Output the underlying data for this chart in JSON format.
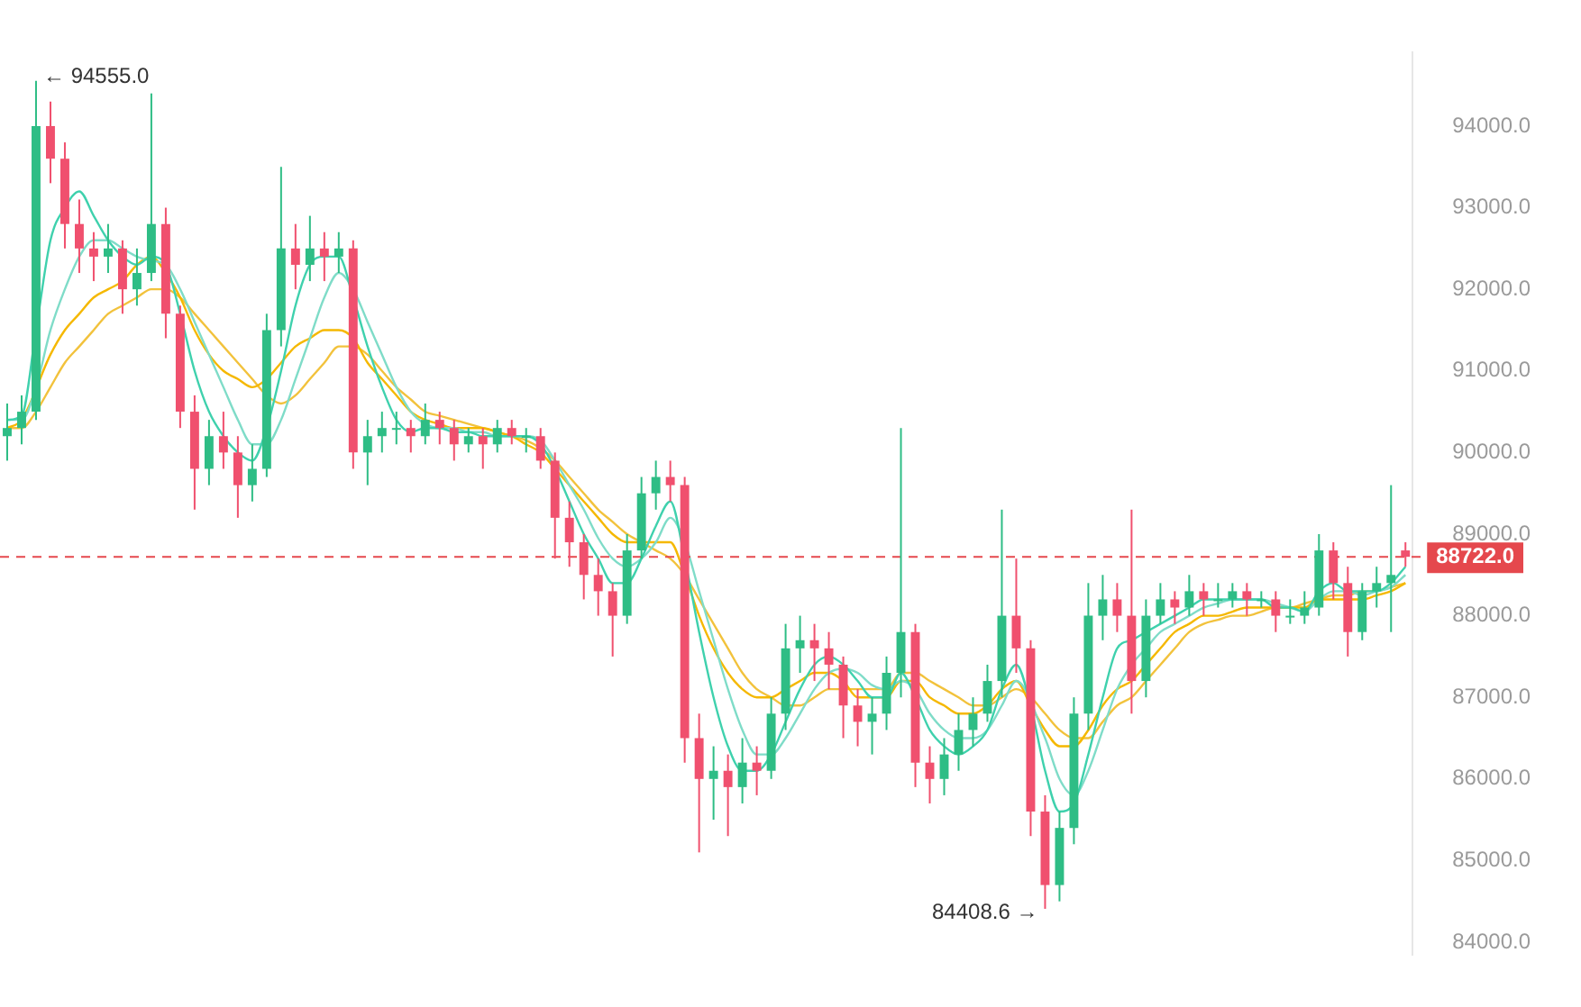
{
  "chart_data": {
    "type": "candlestick",
    "categories": [
      null,
      null,
      null,
      null,
      null,
      null,
      null,
      null,
      null,
      null,
      null,
      null,
      null,
      null,
      null,
      null,
      null,
      null,
      null,
      null,
      null,
      null,
      null,
      null,
      null,
      null,
      null,
      null,
      null,
      null,
      null,
      null,
      null,
      null,
      null,
      null,
      null,
      null,
      null,
      null,
      null,
      null,
      null,
      null,
      null,
      null,
      null,
      null,
      null,
      null,
      null,
      null,
      null,
      null,
      null,
      null,
      null,
      null,
      null,
      null,
      null,
      null,
      null,
      null,
      null,
      null,
      null,
      null,
      null,
      null,
      null,
      null,
      null,
      null,
      null,
      null,
      null,
      null,
      null,
      null,
      null,
      null,
      null,
      null,
      null,
      null,
      null,
      null,
      null,
      null,
      null,
      null,
      null,
      null,
      null,
      null,
      null,
      null
    ],
    "ohlc": [
      [
        90200,
        90600,
        89900,
        90300
      ],
      [
        90300,
        90700,
        90100,
        90500
      ],
      [
        90500,
        94555,
        90400,
        94000
      ],
      [
        94000,
        94300,
        93300,
        93600
      ],
      [
        93600,
        93800,
        92500,
        92800
      ],
      [
        92800,
        93100,
        92200,
        92500
      ],
      [
        92500,
        92700,
        92100,
        92400
      ],
      [
        92400,
        92800,
        92200,
        92500
      ],
      [
        92500,
        92600,
        91700,
        92000
      ],
      [
        92000,
        92500,
        91800,
        92200
      ],
      [
        92200,
        94400,
        92100,
        92800
      ],
      [
        92800,
        93000,
        91400,
        91700
      ],
      [
        91700,
        91800,
        90300,
        90500
      ],
      [
        90500,
        90700,
        89300,
        89800
      ],
      [
        89800,
        90400,
        89600,
        90200
      ],
      [
        90200,
        90500,
        89800,
        90000
      ],
      [
        90000,
        90200,
        89200,
        89600
      ],
      [
        89600,
        90100,
        89400,
        89800
      ],
      [
        89800,
        91700,
        89700,
        91500
      ],
      [
        91500,
        93500,
        91300,
        92500
      ],
      [
        92500,
        92800,
        92000,
        92300
      ],
      [
        92300,
        92900,
        92100,
        92500
      ],
      [
        92500,
        92700,
        92100,
        92400
      ],
      [
        92400,
        92700,
        92200,
        92500
      ],
      [
        92500,
        92600,
        89800,
        90000
      ],
      [
        90000,
        90400,
        89600,
        90200
      ],
      [
        90200,
        90500,
        90000,
        90300
      ],
      [
        90300,
        90500,
        90100,
        90300
      ],
      [
        90300,
        90400,
        90000,
        90200
      ],
      [
        90200,
        90600,
        90100,
        90400
      ],
      [
        90400,
        90500,
        90100,
        90300
      ],
      [
        90300,
        90400,
        89900,
        90100
      ],
      [
        90100,
        90300,
        90000,
        90200
      ],
      [
        90200,
        90300,
        89800,
        90100
      ],
      [
        90100,
        90400,
        90000,
        90300
      ],
      [
        90300,
        90400,
        90100,
        90200
      ],
      [
        90200,
        90300,
        90000,
        90200
      ],
      [
        90200,
        90300,
        89800,
        89900
      ],
      [
        89900,
        90000,
        88700,
        89200
      ],
      [
        89200,
        89400,
        88600,
        88900
      ],
      [
        88900,
        89000,
        88200,
        88500
      ],
      [
        88500,
        88700,
        88000,
        88300
      ],
      [
        88300,
        88400,
        87500,
        88000
      ],
      [
        88000,
        89000,
        87900,
        88800
      ],
      [
        88800,
        89700,
        88700,
        89500
      ],
      [
        89500,
        89900,
        89300,
        89700
      ],
      [
        89700,
        89900,
        89400,
        89600
      ],
      [
        89600,
        89700,
        86200,
        86500
      ],
      [
        86500,
        86800,
        85100,
        86000
      ],
      [
        86000,
        86400,
        85500,
        86100
      ],
      [
        86100,
        86300,
        85300,
        85900
      ],
      [
        85900,
        86500,
        85700,
        86200
      ],
      [
        86200,
        86400,
        85800,
        86100
      ],
      [
        86100,
        87000,
        86000,
        86800
      ],
      [
        86800,
        87900,
        86600,
        87600
      ],
      [
        87600,
        88000,
        87300,
        87700
      ],
      [
        87700,
        87900,
        87200,
        87600
      ],
      [
        87600,
        87800,
        87100,
        87400
      ],
      [
        87400,
        87500,
        86500,
        86900
      ],
      [
        86900,
        87100,
        86400,
        86700
      ],
      [
        86700,
        87000,
        86300,
        86800
      ],
      [
        86800,
        87500,
        86600,
        87300
      ],
      [
        87300,
        90300,
        87000,
        87800
      ],
      [
        87800,
        87900,
        85900,
        86200
      ],
      [
        86200,
        86400,
        85700,
        86000
      ],
      [
        86000,
        86500,
        85800,
        86300
      ],
      [
        86300,
        86800,
        86100,
        86600
      ],
      [
        86600,
        87000,
        86400,
        86800
      ],
      [
        86800,
        87400,
        86700,
        87200
      ],
      [
        87200,
        89300,
        87000,
        88000
      ],
      [
        88000,
        88700,
        87300,
        87600
      ],
      [
        87600,
        87700,
        85300,
        85600
      ],
      [
        85600,
        85800,
        84408.6,
        84700
      ],
      [
        84700,
        85600,
        84500,
        85400
      ],
      [
        85400,
        87000,
        85200,
        86800
      ],
      [
        86800,
        88400,
        86600,
        88000
      ],
      [
        88000,
        88500,
        87700,
        88200
      ],
      [
        88200,
        88400,
        87800,
        88000
      ],
      [
        88000,
        89300,
        86800,
        87200
      ],
      [
        87200,
        88200,
        87000,
        88000
      ],
      [
        88000,
        88400,
        87900,
        88200
      ],
      [
        88200,
        88300,
        87900,
        88100
      ],
      [
        88100,
        88500,
        88000,
        88300
      ],
      [
        88300,
        88400,
        88000,
        88200
      ],
      [
        88200,
        88400,
        88100,
        88200
      ],
      [
        88200,
        88400,
        88100,
        88300
      ],
      [
        88300,
        88400,
        88000,
        88200
      ],
      [
        88200,
        88300,
        88100,
        88200
      ],
      [
        88200,
        88300,
        87800,
        88000
      ],
      [
        88000,
        88200,
        87900,
        88000
      ],
      [
        88000,
        88300,
        87900,
        88100
      ],
      [
        88100,
        89000,
        88000,
        88800
      ],
      [
        88800,
        88900,
        88200,
        88400
      ],
      [
        88400,
        88600,
        87500,
        87800
      ],
      [
        87800,
        88400,
        87700,
        88300
      ],
      [
        88300,
        88600,
        88100,
        88400
      ],
      [
        88400,
        89600,
        87800,
        88500
      ],
      [
        88800,
        88900,
        88600,
        88722
      ]
    ],
    "colors": [
      "#2ebd85",
      "#2ebd85",
      "#2ebd85",
      "#f0506e",
      "#f0506e",
      "#f0506e",
      "#f0506e",
      "#2ebd85",
      "#f0506e",
      "#2ebd85",
      "#2ebd85",
      "#f0506e",
      "#f0506e",
      "#f0506e",
      "#2ebd85",
      "#f0506e",
      "#f0506e",
      "#2ebd85",
      "#2ebd85",
      "#2ebd85",
      "#f0506e",
      "#2ebd85",
      "#f0506e",
      "#2ebd85",
      "#f0506e",
      "#2ebd85",
      "#2ebd85",
      "#2ebd85",
      "#f0506e",
      "#2ebd85",
      "#f0506e",
      "#f0506e",
      "#2ebd85",
      "#f0506e",
      "#2ebd85",
      "#f0506e",
      "#2ebd85",
      "#f0506e",
      "#f0506e",
      "#f0506e",
      "#f0506e",
      "#f0506e",
      "#f0506e",
      "#2ebd85",
      "#2ebd85",
      "#2ebd85",
      "#f0506e",
      "#f0506e",
      "#f0506e",
      "#2ebd85",
      "#f0506e",
      "#2ebd85",
      "#f0506e",
      "#2ebd85",
      "#2ebd85",
      "#2ebd85",
      "#f0506e",
      "#f0506e",
      "#f0506e",
      "#f0506e",
      "#2ebd85",
      "#2ebd85",
      "#2ebd85",
      "#f0506e",
      "#f0506e",
      "#2ebd85",
      "#2ebd85",
      "#2ebd85",
      "#2ebd85",
      "#2ebd85",
      "#f0506e",
      "#f0506e",
      "#f0506e",
      "#2ebd85",
      "#2ebd85",
      "#2ebd85",
      "#2ebd85",
      "#f0506e",
      "#f0506e",
      "#2ebd85",
      "#2ebd85",
      "#f0506e",
      "#2ebd85",
      "#f0506e",
      "#2ebd85",
      "#2ebd85",
      "#f0506e",
      "#2ebd85",
      "#f0506e",
      "#2ebd85",
      "#2ebd85",
      "#2ebd85",
      "#f0506e",
      "#f0506e",
      "#2ebd85",
      "#2ebd85",
      "#2ebd85",
      "#f0506e"
    ],
    "series": [
      {
        "type": "line",
        "color": "#3fd1ad",
        "values": [
          90400,
          90450,
          91500,
          92600,
          93000,
          93200,
          92900,
          92600,
          92400,
          92300,
          92400,
          92300,
          91700,
          91000,
          90500,
          90200,
          90000,
          89900,
          90300,
          91000,
          91800,
          92300,
          92400,
          92400,
          91900,
          91300,
          90800,
          90400,
          90250,
          90300,
          90300,
          90250,
          90250,
          90200,
          90200,
          90200,
          90200,
          90100,
          89800,
          89400,
          89000,
          88700,
          88400,
          88400,
          88700,
          89100,
          89400,
          88700,
          87800,
          87000,
          86400,
          86100,
          86100,
          86300,
          86700,
          87100,
          87400,
          87500,
          87400,
          87200,
          87000,
          87000,
          87300,
          87000,
          86600,
          86400,
          86300,
          86400,
          86600,
          87100,
          87400,
          86900,
          86100,
          85600,
          85700,
          86300,
          87000,
          87600,
          87700,
          87800,
          87900,
          88000,
          88100,
          88200,
          88200,
          88200,
          88200,
          88200,
          88100,
          88100,
          88050,
          88300,
          88400,
          88300,
          88300,
          88300,
          88400,
          88600
        ]
      },
      {
        "type": "line",
        "color": "#7fdcc8",
        "values": [
          90400,
          90400,
          90800,
          91500,
          92000,
          92400,
          92600,
          92600,
          92500,
          92400,
          92350,
          92300,
          92000,
          91600,
          91200,
          90800,
          90400,
          90100,
          90100,
          90400,
          90900,
          91400,
          91900,
          92200,
          92000,
          91600,
          91200,
          90800,
          90500,
          90350,
          90300,
          90300,
          90250,
          90250,
          90200,
          90200,
          90200,
          90150,
          89900,
          89600,
          89300,
          88950,
          88700,
          88600,
          88700,
          88900,
          89200,
          88900,
          88300,
          87700,
          87100,
          86600,
          86300,
          86300,
          86500,
          86800,
          87100,
          87300,
          87350,
          87300,
          87150,
          87100,
          87200,
          87100,
          86800,
          86600,
          86500,
          86500,
          86600,
          86900,
          87200,
          null,
          86500,
          86000,
          85800,
          86100,
          86600,
          87100,
          87400,
          87600,
          87800,
          87900,
          88000,
          88100,
          88150,
          88200,
          88200,
          88200,
          88150,
          88100,
          88050,
          88200,
          88300,
          88300,
          88250,
          88300,
          88350,
          88500
        ]
      },
      {
        "type": "line",
        "color": "#f5b800",
        "values": [
          90300,
          90400,
          null,
          91200,
          91500,
          91700,
          91900,
          92000,
          92100,
          92300,
          92400,
          92200,
          91900,
          91500,
          91200,
          91000,
          90900,
          90800,
          90900,
          91100,
          91300,
          91400,
          91500,
          91500,
          91400,
          91100,
          90900,
          90700,
          90500,
          90400,
          90350,
          90300,
          90300,
          90300,
          90250,
          90200,
          90100,
          90000,
          89800,
          89600,
          89400,
          89200,
          89000,
          88900,
          88900,
          88900,
          88900,
          88500,
          88000,
          87600,
          87300,
          87100,
          87000,
          87000,
          87100,
          87200,
          87300,
          87300,
          87200,
          87000,
          87000,
          87000,
          87200,
          87200,
          87000,
          86900,
          86800,
          86800,
          86900,
          87100,
          87200,
          86900,
          86600,
          86400,
          86400,
          86600,
          86900,
          87100,
          87200,
          87400,
          87600,
          87800,
          87900,
          88000,
          88000,
          88050,
          88100,
          88100,
          88100,
          88100,
          88100,
          88200,
          88200,
          88200,
          88200,
          88250,
          88300,
          88400
        ]
      },
      {
        "type": "line",
        "color": "#f2c23c",
        "values": [
          90300,
          90300,
          90500,
          90800,
          91100,
          91300,
          91500,
          91700,
          91800,
          91900,
          92000,
          92000,
          91900,
          91700,
          91500,
          91300,
          91100,
          90900,
          90700,
          90600,
          90700,
          90900,
          91100,
          91300,
          91300,
          91200,
          91000,
          90800,
          90650,
          90500,
          90450,
          90400,
          90350,
          90300,
          90250,
          90200,
          90150,
          90050,
          89900,
          89700,
          89500,
          89300,
          89150,
          89000,
          88900,
          88800,
          88700,
          88500,
          88200,
          87900,
          87600,
          87300,
          87100,
          87000,
          86900,
          86900,
          87000,
          87100,
          87100,
          87100,
          87100,
          87100,
          87300,
          87300,
          87200,
          87100,
          87000,
          86900,
          86900,
          87000,
          87100,
          87000,
          86800,
          86600,
          86500,
          86500,
          86700,
          86900,
          87000,
          87200,
          87400,
          87600,
          87800,
          87900,
          87950,
          88000,
          88000,
          88050,
          88100,
          88100,
          88150,
          88200,
          88250,
          88250,
          88300,
          88300,
          88350,
          88400
        ]
      }
    ],
    "ylim": [
      83850,
      94900
    ],
    "yticks": [
      {
        "value": 84000,
        "label": "84000.0"
      },
      {
        "value": 85000,
        "label": "85000.0"
      },
      {
        "value": 86000,
        "label": "86000.0"
      },
      {
        "value": 87000,
        "label": "87000.0"
      },
      {
        "value": 88000,
        "label": "88000.0"
      },
      {
        "value": 89000,
        "label": "89000.0"
      },
      {
        "value": 90000,
        "label": "90000.0"
      },
      {
        "value": 91000,
        "label": "91000.0"
      },
      {
        "value": 92000,
        "label": "92000.0"
      },
      {
        "value": 93000,
        "label": "93000.0"
      },
      {
        "value": 94000,
        "label": "94000.0"
      }
    ],
    "tick_labels": "y",
    "marker": "none",
    "ref_lines": [
      {
        "axis": "y",
        "value": 88722,
        "label": "88722.0",
        "color": "#e5484d",
        "line_style": "dashed"
      }
    ],
    "annotations": [
      "← 94555.0",
      "84408.6 →"
    ]
  }
}
